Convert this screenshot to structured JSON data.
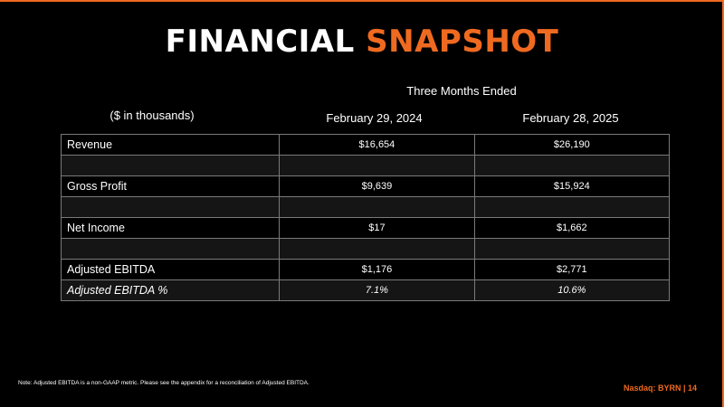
{
  "title": {
    "part1": "FINANCIAL",
    "part2": "SNAPSHOT"
  },
  "header": {
    "period": "Three Months Ended",
    "units": "($ in thousands)",
    "col1": "February 29, 2024",
    "col2": "February 28, 2025"
  },
  "rows": [
    {
      "label": "Revenue",
      "v1": "$16,654",
      "v2": "$26,190"
    },
    {
      "label": "",
      "v1": "",
      "v2": ""
    },
    {
      "label": "Gross Profit",
      "v1": "$9,639",
      "v2": "$15,924"
    },
    {
      "label": "",
      "v1": "",
      "v2": ""
    },
    {
      "label": "Net Income",
      "v1": "$17",
      "v2": "$1,662"
    },
    {
      "label": "",
      "v1": "",
      "v2": ""
    },
    {
      "label": "Adjusted EBITDA",
      "v1": "$1,176",
      "v2": "$2,771"
    },
    {
      "label": "Adjusted EBITDA %",
      "v1": "7.1%",
      "v2": "10.6%"
    }
  ],
  "note": "Note: Adjusted EBITDA is a non-GAAP metric. Please see the appendix for a reconciliation of Adjusted EBITDA.",
  "footer": "Nasdaq: BYRN | 14",
  "colors": {
    "accent": "#ef6a20",
    "background": "#000000",
    "text": "#ffffff"
  }
}
